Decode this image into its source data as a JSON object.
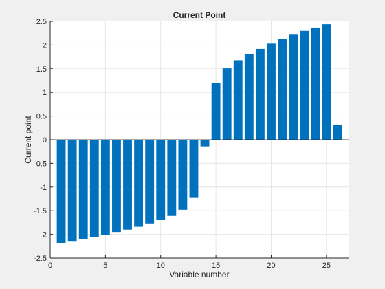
{
  "chart_data": {
    "type": "bar",
    "title": "Current Point",
    "xlabel": "Variable number",
    "ylabel": "Current point",
    "x": [
      1,
      2,
      3,
      4,
      5,
      6,
      7,
      8,
      9,
      10,
      11,
      12,
      13,
      14,
      15,
      16,
      17,
      18,
      19,
      20,
      21,
      22,
      23,
      24,
      25,
      26
    ],
    "values": [
      -2.18,
      -2.14,
      -2.1,
      -2.06,
      -2.01,
      -1.95,
      -1.9,
      -1.84,
      -1.77,
      -1.7,
      -1.61,
      -1.48,
      -1.23,
      -0.14,
      1.2,
      1.51,
      1.68,
      1.81,
      1.92,
      2.03,
      2.13,
      2.22,
      2.3,
      2.37,
      2.44,
      0.31
    ],
    "xlim": [
      0,
      27
    ],
    "ylim": [
      -2.5,
      2.5
    ],
    "xticks": [
      0,
      5,
      10,
      15,
      20,
      25
    ],
    "yticks": [
      -2.5,
      -2,
      -1.5,
      -1,
      -0.5,
      0,
      0.5,
      1,
      1.5,
      2,
      2.5
    ],
    "xtick_labels": [
      "0",
      "5",
      "10",
      "15",
      "20",
      "25"
    ],
    "ytick_labels": [
      "-2.5",
      "-2",
      "-1.5",
      "-1",
      "-0.5",
      "0",
      "0.5",
      "1",
      "1.5",
      "2",
      "2.5"
    ],
    "grid": true,
    "colors": {
      "bar": "#0072bd",
      "figure_background": "#f0f0f0",
      "axes_background": "#ffffff",
      "grid": "#e6e6e6",
      "axis": "#262626"
    }
  }
}
